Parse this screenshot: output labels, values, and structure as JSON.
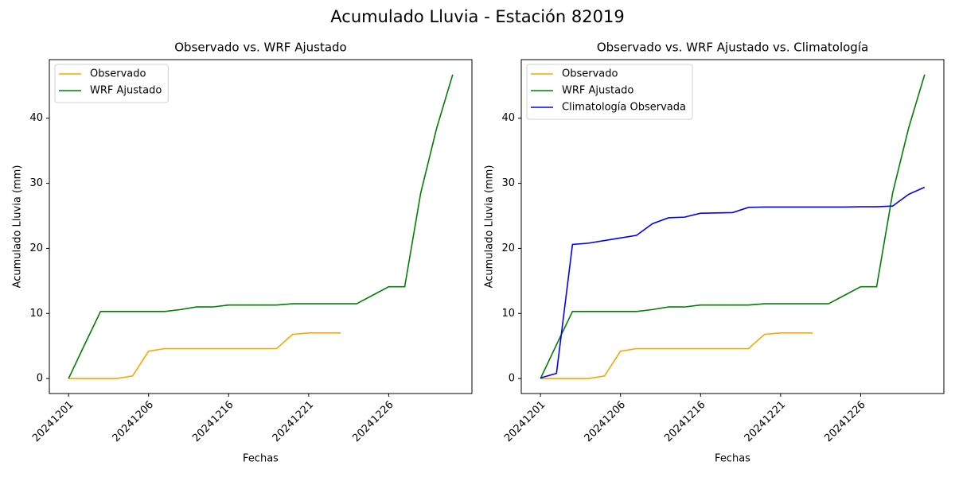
{
  "title": "Acumulado Lluvia - Estación 82019",
  "chart_data": [
    {
      "type": "line",
      "title": "Observado vs. WRF Ajustado",
      "x_label": "Fechas",
      "y_label": "Acumulado Lluvia (mm)",
      "categories": [
        "20241201",
        null,
        null,
        null,
        null,
        "20241206",
        null,
        null,
        null,
        null,
        "20241216",
        null,
        null,
        null,
        null,
        "20241221",
        null,
        null,
        null,
        null,
        "20241226",
        null,
        null,
        null,
        null
      ],
      "series": [
        {
          "name": "Observado",
          "color": "#ffa500",
          "values": [
            0,
            0,
            0,
            0,
            0.4,
            4.2,
            4.6,
            4.6,
            4.6,
            4.6,
            4.6,
            4.6,
            4.6,
            4.6,
            6.8,
            7.0,
            7.0,
            7.0,
            null,
            null,
            null,
            null,
            null,
            null,
            null
          ]
        },
        {
          "name": "WRF Ajustado",
          "color": "#008000",
          "values": [
            0,
            5.2,
            10.3,
            10.3,
            10.3,
            10.3,
            10.3,
            10.6,
            11.0,
            11.0,
            11.3,
            11.3,
            11.3,
            11.3,
            11.5,
            11.5,
            11.5,
            11.5,
            11.5,
            12.8,
            14.1,
            14.1,
            28.5,
            38.5,
            46.7
          ]
        }
      ],
      "ylim": [
        -2.3,
        49.0
      ],
      "yticks": [
        0,
        10,
        20,
        30,
        40
      ],
      "legend": "upper left",
      "grid": false
    },
    {
      "type": "line",
      "title": "Observado vs. WRF Ajustado vs. Climatología",
      "x_label": "Fechas",
      "y_label": "Acumulado Lluvia (mm)",
      "categories": [
        "20241201",
        null,
        null,
        null,
        null,
        "20241206",
        null,
        null,
        null,
        null,
        "20241216",
        null,
        null,
        null,
        null,
        "20241221",
        null,
        null,
        null,
        null,
        "20241226",
        null,
        null,
        null,
        null
      ],
      "series": [
        {
          "name": "Observado",
          "color": "#ffa500",
          "values": [
            0,
            0,
            0,
            0,
            0.4,
            4.2,
            4.6,
            4.6,
            4.6,
            4.6,
            4.6,
            4.6,
            4.6,
            4.6,
            6.8,
            7.0,
            7.0,
            7.0,
            null,
            null,
            null,
            null,
            null,
            null,
            null
          ]
        },
        {
          "name": "WRF Ajustado",
          "color": "#008000",
          "values": [
            0,
            5.2,
            10.3,
            10.3,
            10.3,
            10.3,
            10.3,
            10.6,
            11.0,
            11.0,
            11.3,
            11.3,
            11.3,
            11.3,
            11.5,
            11.5,
            11.5,
            11.5,
            11.5,
            12.8,
            14.1,
            14.1,
            28.5,
            38.5,
            46.7
          ]
        },
        {
          "name": "Climatología Observada",
          "color": "#0000ff",
          "values": [
            0.1,
            0.8,
            20.6,
            20.8,
            21.2,
            21.6,
            22.0,
            23.8,
            24.7,
            24.8,
            25.4,
            25.45,
            25.5,
            26.3,
            26.35,
            26.35,
            26.35,
            26.35,
            26.35,
            26.35,
            26.4,
            26.4,
            26.5,
            28.3,
            29.4
          ]
        }
      ],
      "ylim": [
        -2.3,
        49.0
      ],
      "yticks": [
        0,
        10,
        20,
        30,
        40
      ],
      "legend": "upper left",
      "grid": false
    }
  ]
}
